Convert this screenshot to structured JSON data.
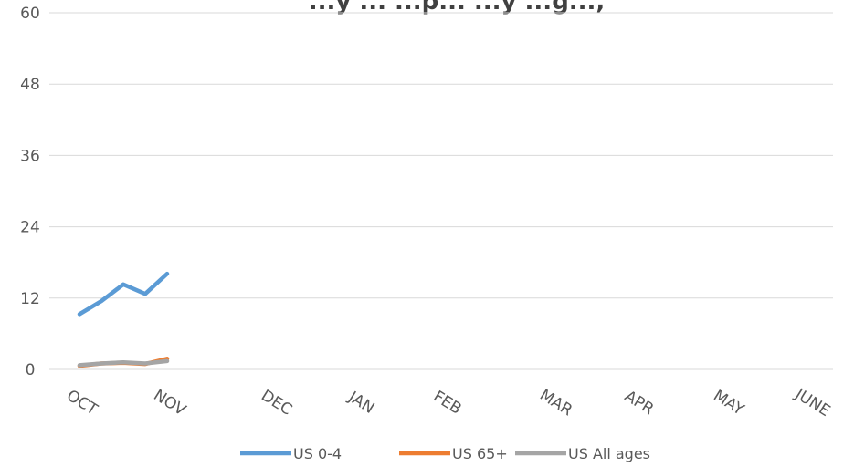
{
  "chart_data": {
    "type": "line",
    "title": "...y ... ...p... ...y ...g...,",
    "xlabel": "",
    "ylabel": "",
    "ylim": [
      0,
      60
    ],
    "yticks": [
      "0",
      "12",
      "24",
      "36",
      "48",
      "60"
    ],
    "categories": [
      "OCT",
      "NOV",
      "DEC",
      "JAN",
      "FEB",
      "MAR",
      "APR",
      "MAY",
      "JUNE"
    ],
    "grid": true,
    "legend_position": "bottom",
    "series": [
      {
        "name": "US 0-4",
        "color": "#5B9BD5",
        "x": [
          0,
          0.25,
          0.5,
          0.75,
          1.0
        ],
        "values": [
          9.3,
          11.5,
          14.3,
          12.7,
          16.1
        ]
      },
      {
        "name": "US 65+",
        "color": "#ED7D31",
        "x": [
          0,
          0.25,
          0.5,
          0.75,
          1.0
        ],
        "values": [
          0.6,
          1.0,
          1.1,
          0.9,
          1.8
        ]
      },
      {
        "name": "US All ages",
        "color": "#A5A5A5",
        "x": [
          0,
          0.25,
          0.5,
          0.75,
          1.0
        ],
        "values": [
          0.7,
          1.0,
          1.2,
          1.0,
          1.4
        ]
      }
    ]
  }
}
